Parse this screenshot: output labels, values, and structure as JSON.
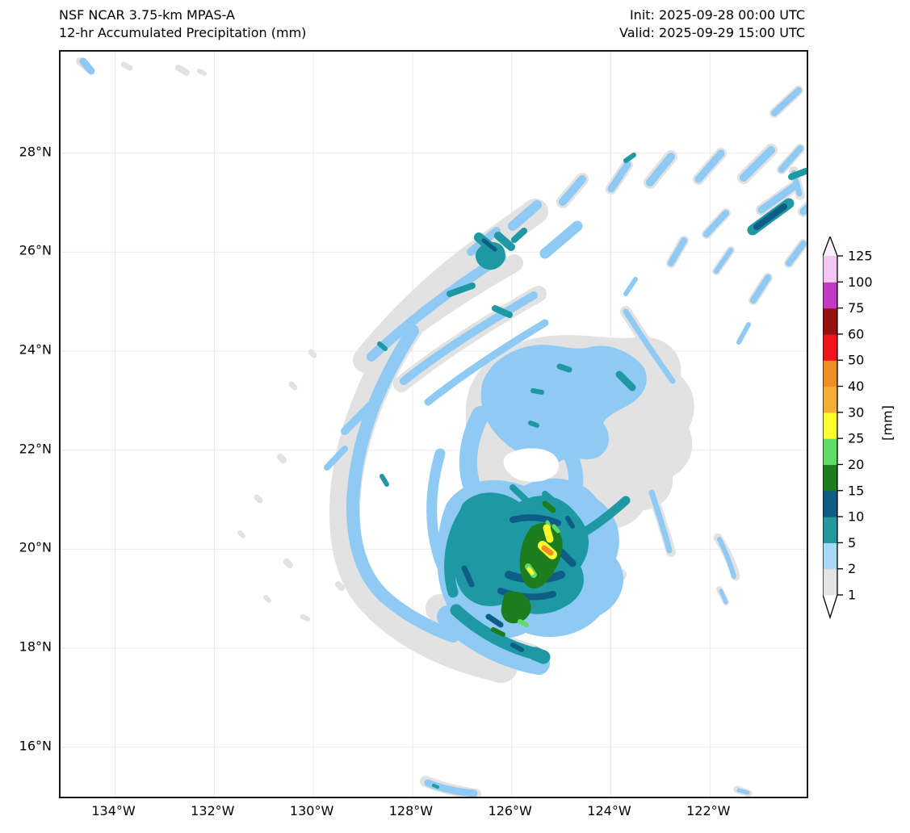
{
  "header": {
    "title_line1": "NSF NCAR 3.75-km MPAS-A",
    "title_line2": "12-hr Accumulated Precipitation (mm)",
    "init_label": "Init: 2025-09-28 00:00 UTC",
    "valid_label": "Valid: 2025-09-29 15:00 UTC"
  },
  "chart_data": {
    "type": "heatmap",
    "title": "NSF NCAR 3.75-km MPAS-A — 12-hr Accumulated Precipitation (mm)",
    "subtitle": "Init: 2025-09-28 00:00 UTC, Valid: 2025-09-29 15:00 UTC",
    "description": "Filled-contour map of 12-hr accumulated precipitation for a tropical cyclone over the eastern Pacific; spiral rainbands wrap clockwise from the northeast around a clear eye near 125.6W 21.4N, with the heaviest rain (30-40 mm) in a streak near 125.2W 20.2N.",
    "grid": true,
    "background": "#ffffff",
    "x_axis": {
      "label": "",
      "range": [
        -135.1,
        -120.05
      ],
      "ticks": [
        {
          "value": -134,
          "label": "134°W"
        },
        {
          "value": -132,
          "label": "132°W"
        },
        {
          "value": -130,
          "label": "130°W"
        },
        {
          "value": -128,
          "label": "128°W"
        },
        {
          "value": -126,
          "label": "126°W"
        },
        {
          "value": -124,
          "label": "124°W"
        },
        {
          "value": -122,
          "label": "122°W"
        }
      ]
    },
    "y_axis": {
      "label": "",
      "range": [
        15.0,
        30.05
      ],
      "ticks": [
        {
          "value": 16,
          "label": "16°N"
        },
        {
          "value": 18,
          "label": "18°N"
        },
        {
          "value": 20,
          "label": "20°N"
        },
        {
          "value": 22,
          "label": "22°N"
        },
        {
          "value": 24,
          "label": "24°N"
        },
        {
          "value": 26,
          "label": "26°N"
        },
        {
          "value": 28,
          "label": "28°N"
        }
      ]
    },
    "colorbar": {
      "label": "[mm]",
      "levels": [
        1,
        2,
        5,
        10,
        15,
        20,
        25,
        30,
        40,
        50,
        60,
        75,
        100,
        125
      ],
      "level_labels": [
        "1",
        "2",
        "5",
        "10",
        "15",
        "20",
        "25",
        "30",
        "40",
        "50",
        "60",
        "75",
        "100",
        "125"
      ],
      "colors": [
        "#e3e3e3",
        "#a9d8f5",
        "#23999f",
        "#0d5d86",
        "#1c7c1e",
        "#5fdc66",
        "#fdfd2e",
        "#f3ae33",
        "#ed8f23",
        "#f3131b",
        "#970f10",
        "#c239c4",
        "#f3c7f1"
      ],
      "under_color": "#ffffff",
      "over_color": "#fceffc"
    },
    "storm": {
      "center_lon": -125.6,
      "center_lat": 21.4,
      "eye": "clear (< 1 mm)",
      "max_shown_interval_mm": "30-40",
      "max_location": {
        "lon": -125.2,
        "lat": 20.2
      }
    },
    "field_layers": [
      {
        "name": "precip-1-2mm",
        "interval": "1-2 mm",
        "color": "#e2e2e2",
        "fills": [
          "M502,448 C500,400 540,362 594,354 C638,346 678,358 712,354 C748,350 772,372 768,402 C786,418 790,444 778,466 C788,490 780,514 758,526 C760,550 744,566 722,568 C708,588 686,596 666,588 C644,598 620,594 604,580 C580,584 554,572 542,552 C520,540 506,518 510,494 C500,478 502,462 502,448 Z"
        ],
        "strokes": [
          [
            "M432,338 C392,398 354,478 352,566 C351,626 368,666 396,688",
            38
          ],
          [
            "M396,688 C436,726 486,748 546,762",
            40
          ],
          [
            "M378,382 C420,330 472,280 532,238 L588,198",
            32
          ],
          [
            "M390,378 C442,336 502,296 562,262",
            22
          ],
          [
            "M422,412 C472,372 532,334 592,300",
            20
          ],
          [
            "M470,690 C500,718 540,740 582,752",
            36
          ],
          [
            "M622,186 L646,158",
            16
          ],
          [
            "M682,170 L702,140",
            14
          ],
          [
            "M730,162 L756,130",
            16
          ],
          [
            "M790,158 L818,126",
            14
          ],
          [
            "M846,156 L880,122",
            16
          ],
          [
            "M893,146 L916,120",
            12
          ],
          [
            "M868,196 L910,166",
            14
          ],
          [
            "M800,226 L824,200",
            12
          ],
          [
            "M756,262 L772,234",
            12
          ],
          [
            "M812,272 L830,246",
            10
          ],
          [
            "M858,308 L876,280",
            12
          ],
          [
            "M902,262 L920,238",
            12
          ],
          [
            "M920,198 L950,170",
            14
          ],
          [
            "M884,76 L914,48",
            12
          ],
          [
            "M908,148 L916,178",
            12
          ],
          [
            "M700,322 C718,350 738,380 758,408",
            14
          ],
          [
            "M814,602 C824,618 832,634 836,650",
            11
          ],
          [
            "M816,666 L824,682",
            8
          ],
          [
            "M730,542 C740,566 748,594 756,620",
            12
          ],
          [
            "M612,712 C640,698 668,674 694,648",
            14
          ],
          [
            "M452,904 C472,912 492,917 514,920",
            14
          ],
          [
            "M838,914 L852,919",
            9
          ],
          [
            "M24,12 L36,22",
            10
          ],
          [
            "M78,16 L86,20",
            7
          ],
          [
            "M146,20 L156,26",
            8
          ],
          [
            "M172,24 L178,27",
            6
          ],
          [
            "M310,372 L314,376",
            7
          ],
          [
            "M286,412 L290,416",
            7
          ],
          [
            "M272,502 L276,506",
            8
          ],
          [
            "M243,552 L247,556",
            7
          ],
          [
            "M280,632 L284,636",
            8
          ],
          [
            "M222,596 L226,600",
            6
          ],
          [
            "M344,660 L348,664",
            8
          ],
          [
            "M254,676 L258,680",
            6
          ],
          [
            "M300,700 L306,703",
            6
          ]
        ]
      },
      {
        "name": "precip-2-5mm",
        "interval": "2-5 mm",
        "color": "#8ecaf3",
        "fills": [
          "M522,412 C530,386 556,368 586,364 C612,360 632,372 656,366 C680,360 704,372 718,386 C730,398 728,418 714,430 C698,444 680,446 672,460 C684,476 680,494 666,502 C650,510 634,498 618,508 C600,518 576,506 560,492 C542,480 528,462 524,446 C520,434 520,422 522,412 Z",
          "M478,560 C498,530 538,524 574,538 C608,520 648,530 664,554 C688,570 698,600 688,628 C706,650 696,684 668,698 C648,722 610,732 576,720 C540,738 496,718 480,688 C462,658 462,598 478,560 Z"
        ],
        "strokes": [
          [
            "M436,346 C402,400 366,470 362,558 C361,612 375,650 400,674 C422,694 452,712 486,724",
            16
          ],
          [
            "M470,498 C458,540 456,580 466,618 C474,650 492,676 516,692",
            13
          ],
          [
            "M520,450 C505,480 500,512 510,540",
            22
          ],
          [
            "M630,498 C641,518 641,544 630,566",
            18
          ],
          [
            "M480,700 C510,730 550,750 592,758",
            28
          ],
          [
            "M540,748 L584,758",
            12
          ],
          [
            "M385,378 C430,336 486,292 546,255",
            12
          ],
          [
            "M425,408 C470,372 528,336 586,302",
            10
          ],
          [
            "M455,434 C498,400 550,366 600,336",
            9
          ],
          [
            "M352,470 L390,432",
            10
          ],
          [
            "M330,515 L352,492",
            8
          ],
          [
            "M508,248 L540,222",
            10
          ],
          [
            "M560,216 L590,190",
            12
          ],
          [
            "M600,250 L640,216",
            13
          ],
          [
            "M622,186 L646,158",
            10
          ],
          [
            "M682,170 L702,140",
            9
          ],
          [
            "M730,162 L756,130",
            10
          ],
          [
            "M790,158 L818,126",
            9
          ],
          [
            "M846,156 L880,122",
            10
          ],
          [
            "M893,146 L916,120",
            8
          ],
          [
            "M868,196 L910,166",
            9
          ],
          [
            "M800,226 L824,200",
            8
          ],
          [
            "M756,262 L772,234",
            8
          ],
          [
            "M812,272 L830,246",
            6
          ],
          [
            "M858,308 L876,280",
            8
          ],
          [
            "M902,262 L920,238",
            8
          ],
          [
            "M920,198 L950,170",
            9
          ],
          [
            "M884,76 L914,48",
            8
          ],
          [
            "M908,150 L915,176",
            7
          ],
          [
            "M700,300 L712,282",
            6
          ],
          [
            "M840,360 L852,338",
            6
          ],
          [
            "M700,322 C718,350 738,380 758,408",
            7
          ],
          [
            "M816,604 C824,620 830,636 834,650",
            6
          ],
          [
            "M818,668 L824,682",
            5
          ],
          [
            "M732,546 C740,570 748,594 754,618",
            7
          ],
          [
            "M614,710 C640,696 668,672 692,648",
            8
          ],
          [
            "M455,906 C472,913 492,917 512,919",
            9
          ],
          [
            "M840,915 L851,918",
            5
          ],
          [
            "M28,12 L38,24",
            9
          ]
        ]
      },
      {
        "name": "eye-clear",
        "interval": "< 1 mm (eye)",
        "color": "#ffffff",
        "fills": [
          "M552,500 C564,491 590,488 606,496 C619,503 621,517 610,526 C595,536 568,535 557,524 C548,515 546,507 552,500 Z"
        ],
        "strokes": []
      },
      {
        "name": "precip-5-10mm",
        "interval": "5-10 mm",
        "color": "#1e98a2",
        "fills": [
          "M498,560 C518,540 548,544 568,558 C598,542 624,552 640,574 C658,594 658,618 644,638 C654,658 644,678 624,688 C600,702 570,698 550,684 C520,694 496,678 490,654 C480,624 486,586 498,560 Z",
          "M514,250 C520,236 536,232 546,240 C554,248 552,262 541,268 C528,275 512,264 514,250 Z"
        ],
        "strokes": [
          [
            "M500,572 C482,600 477,638 486,670",
            13
          ],
          [
            "M520,592 C506,616 503,646 512,672",
            9
          ],
          [
            "M490,692 C520,720 556,738 588,746",
            15
          ],
          [
            "M588,746 L598,750",
            17
          ],
          [
            "M640,600 C660,590 680,574 700,556",
            11
          ],
          [
            "M518,230 L544,252",
            12
          ],
          [
            "M542,228 L558,242",
            10
          ],
          [
            "M562,233 L574,222",
            8
          ],
          [
            "M482,300 L510,290",
            8
          ],
          [
            "M538,318 L556,326",
            8
          ],
          [
            "M857,221 L902,188",
            13
          ],
          [
            "M700,135 L710,128",
            6
          ],
          [
            "M905,155 L923,148",
            8
          ],
          [
            "M618,390 L630,394",
            7
          ],
          [
            "M585,420 L596,422",
            6
          ],
          [
            "M692,400 L708,416",
            9
          ],
          [
            "M582,460 L590,463",
            6
          ],
          [
            "M560,540 L575,554",
            8
          ],
          [
            "M600,548 L614,560",
            8
          ],
          [
            "M395,362 L402,368",
            6
          ],
          [
            "M398,526 L404,536",
            6
          ],
          [
            "M462,909 L467,911",
            4
          ]
        ]
      },
      {
        "name": "precip-10-15mm",
        "interval": "10-15 mm",
        "color": "#0d5d86",
        "fills": [],
        "strokes": [
          [
            "M555,648 C575,656 600,656 620,648",
            10
          ],
          [
            "M545,668 C565,676 590,678 610,672",
            8
          ],
          [
            "M560,580 C580,575 600,577 616,584",
            8
          ],
          [
            "M620,620 L634,634",
            9
          ],
          [
            "M500,640 L509,660",
            7
          ],
          [
            "M530,700 L545,710",
            7
          ],
          [
            "M862,217 L896,192",
            8
          ],
          [
            "M560,735 L571,741",
            6
          ],
          [
            "M524,234 L538,245",
            5
          ],
          [
            "M628,578 L634,588",
            6
          ]
        ]
      },
      {
        "name": "precip-15-20mm",
        "interval": "15-20 mm",
        "color": "#1c7c1e",
        "fills": [
          "M584,588 C598,580 612,584 618,596 C626,610 620,630 610,646 C600,662 588,670 578,662 C568,652 566,630 572,610 C576,598 580,592 584,588 Z",
          "M552,670 C566,666 578,672 582,684 C585,696 576,706 564,708 C552,710 544,700 546,688 C548,678 549,673 552,670 Z"
        ],
        "strokes": [
          [
            "M536,716 L548,722",
            6
          ],
          [
            "M600,560 L610,568",
            7
          ]
        ]
      },
      {
        "name": "precip-20-25mm",
        "interval": "20-25 mm",
        "color": "#5fdc66",
        "fills": [],
        "strokes": [
          [
            "M579,638 L586,648",
            8
          ],
          [
            "M611,588 L616,594",
            5
          ],
          [
            "M569,706 L577,710",
            6
          ],
          [
            "M603,583 L605,588",
            5
          ]
        ]
      },
      {
        "name": "precip-25-30mm",
        "interval": "25-30 mm",
        "color": "#fdfd2e",
        "fills": [],
        "strokes": [
          [
            "M602,590 L606,604",
            9
          ],
          [
            "M597,612 L609,623",
            12
          ],
          [
            "M580,641 L584,646",
            5
          ]
        ]
      },
      {
        "name": "precip-30-40mm",
        "interval": "30-40 mm",
        "color": "#ef8e26",
        "fills": [],
        "strokes": [
          [
            "M599,615 L607,621",
            7
          ]
        ]
      }
    ]
  }
}
